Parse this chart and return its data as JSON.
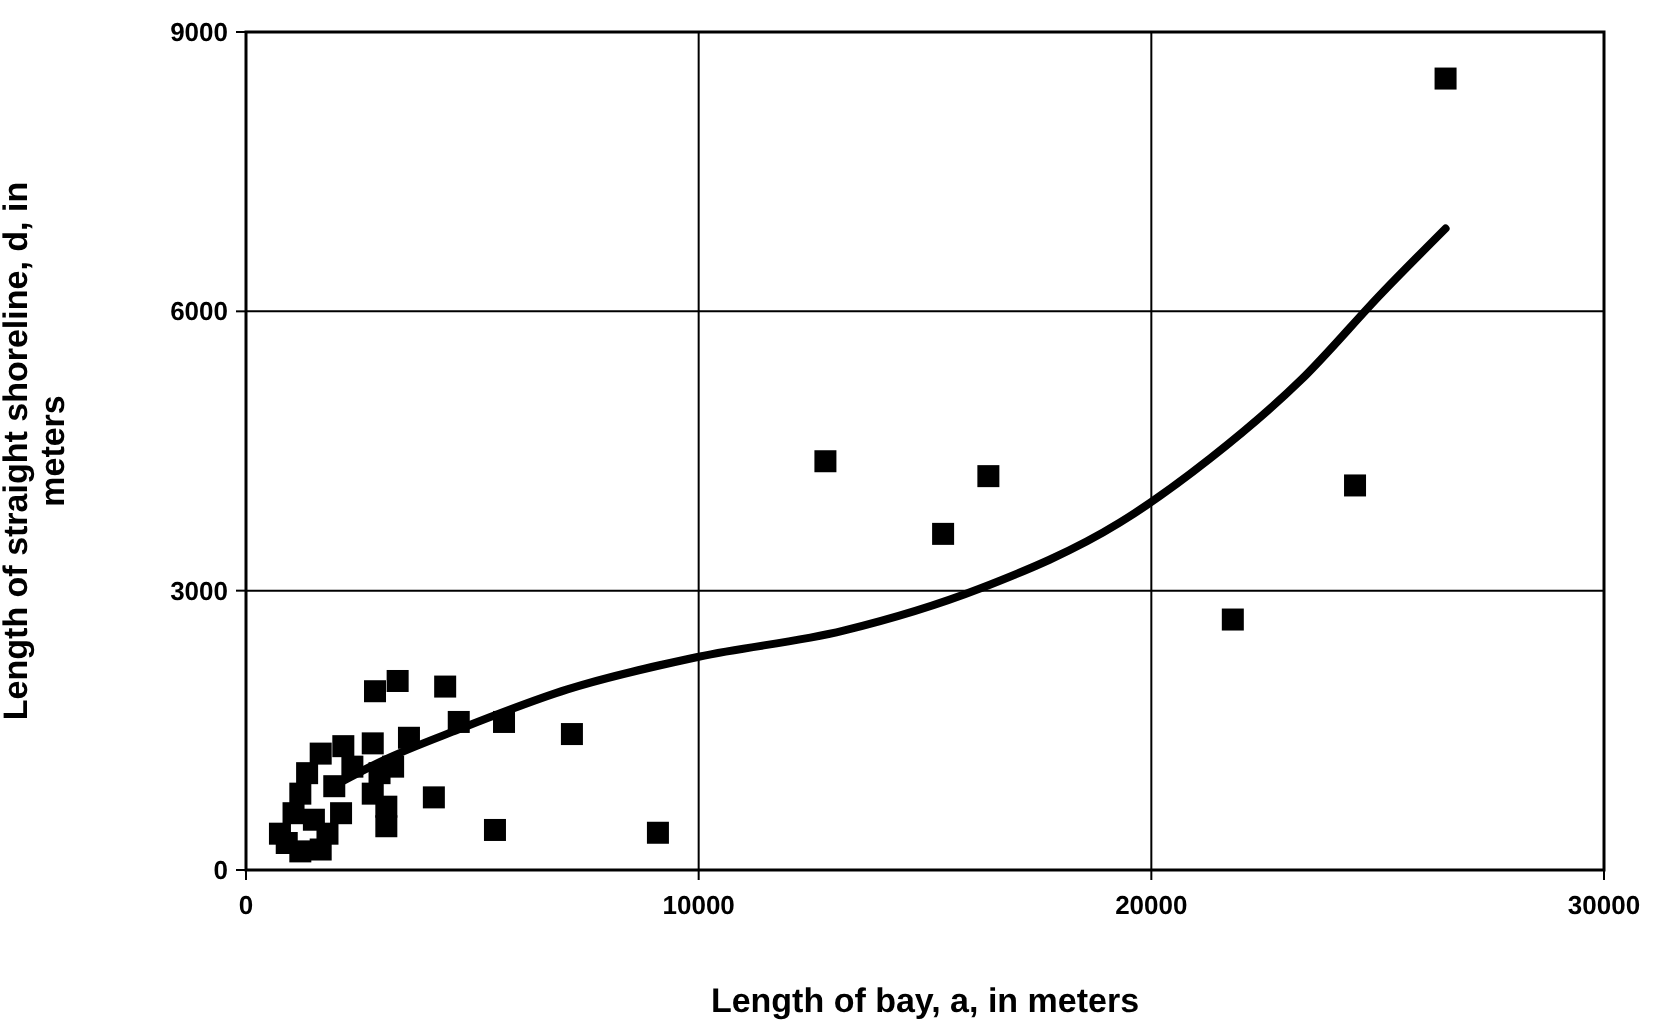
{
  "chart_data": {
    "type": "scatter",
    "xlabel": "Length of bay, a, in meters",
    "ylabel": "Length of straight shoreline, d, in meters",
    "xlim": [
      0,
      30000
    ],
    "ylim": [
      0,
      9000
    ],
    "xticks": [
      0,
      10000,
      20000,
      30000
    ],
    "yticks": [
      0,
      3000,
      6000,
      9000
    ],
    "grid": true,
    "legend": false,
    "marker": "square",
    "series": [
      {
        "color": "#000000",
        "x": [
          26500,
          12800,
          16400,
          15400,
          24500,
          21800,
          9100,
          5500,
          7200,
          5700,
          4700,
          4400,
          3350,
          2850,
          4150,
          3600,
          3100,
          750,
          1200,
          1650,
          1050,
          1200,
          1350,
          1650,
          2150,
          2800,
          2950,
          3250,
          3100,
          1950,
          2100,
          1500,
          2350,
          2800,
          1800,
          900
        ],
        "values": [
          8500,
          4390,
          4230,
          3610,
          4130,
          2690,
          400,
          430,
          1460,
          1590,
          1590,
          1970,
          2030,
          1920,
          780,
          1420,
          470,
          390,
          200,
          220,
          610,
          820,
          1040,
          1250,
          1330,
          1360,
          1040,
          1110,
          680,
          900,
          610,
          540,
          1110,
          820,
          390,
          290
        ]
      },
      {
        "type": "line",
        "color": "#000000",
        "marker": "none",
        "x": [
          2000,
          3000,
          4700,
          7100,
          10000,
          13200,
          16200,
          19300,
          21300,
          23300,
          25100,
          26500
        ],
        "values": [
          920,
          1170,
          1510,
          1940,
          2290,
          2570,
          3020,
          3730,
          4420,
          5260,
          6200,
          6890
        ]
      }
    ]
  }
}
